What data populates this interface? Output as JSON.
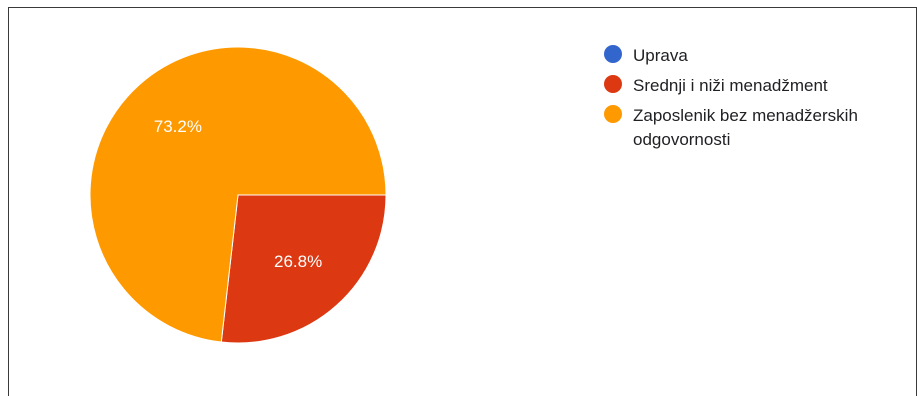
{
  "chart_data": {
    "type": "pie",
    "categories": [
      "Uprava",
      "Srednji i niži menadžment",
      "Zaposlenik bez menadžerskih odgovornosti"
    ],
    "values": [
      0,
      26.8,
      73.2
    ],
    "data_labels": [
      "",
      "26.8%",
      "73.2%"
    ],
    "colors": [
      "#3366cc",
      "#dc3912",
      "#ff9900"
    ],
    "legend_position": "right"
  }
}
